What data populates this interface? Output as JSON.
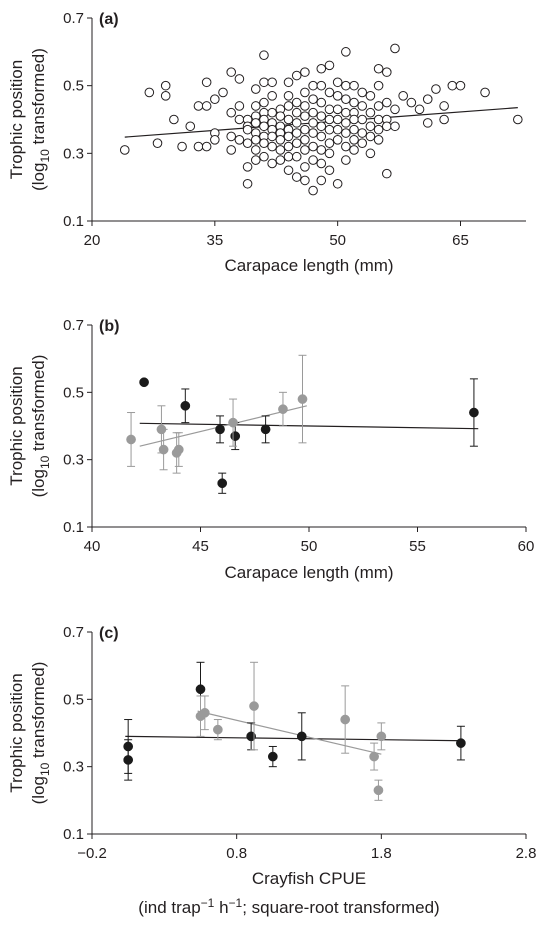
{
  "chart_data": [
    {
      "type": "scatter",
      "panel_label": "(a)",
      "xlabel": "Carapace length (mm)",
      "ylabel_line1": "Trophic position",
      "ylabel_line2_pre": "(log",
      "ylabel_line2_sub": "10",
      "ylabel_line2_post": " transformed)",
      "xlim": [
        20,
        73
      ],
      "ylim": [
        0.1,
        0.7
      ],
      "xticks": [
        20,
        35,
        50,
        65
      ],
      "yticks": [
        0.1,
        0.3,
        0.5,
        0.7
      ],
      "grid": false,
      "series": [
        {
          "marker": "open-circle",
          "color": "#231f20",
          "points": [
            [
              24,
              0.31
            ],
            [
              27,
              0.48
            ],
            [
              28,
              0.33
            ],
            [
              29,
              0.47
            ],
            [
              29,
              0.5
            ],
            [
              30,
              0.4
            ],
            [
              31,
              0.32
            ],
            [
              32,
              0.38
            ],
            [
              33,
              0.44
            ],
            [
              33,
              0.32
            ],
            [
              34,
              0.51
            ],
            [
              34,
              0.44
            ],
            [
              34,
              0.32
            ],
            [
              35,
              0.46
            ],
            [
              35,
              0.36
            ],
            [
              35,
              0.34
            ],
            [
              36,
              0.48
            ],
            [
              37,
              0.54
            ],
            [
              37,
              0.42
            ],
            [
              37,
              0.35
            ],
            [
              37,
              0.31
            ],
            [
              38,
              0.52
            ],
            [
              38,
              0.44
            ],
            [
              38,
              0.4
            ],
            [
              38,
              0.34
            ],
            [
              39,
              0.4
            ],
            [
              39,
              0.38
            ],
            [
              39,
              0.37
            ],
            [
              39,
              0.33
            ],
            [
              39,
              0.26
            ],
            [
              39,
              0.21
            ],
            [
              40,
              0.49
            ],
            [
              40,
              0.44
            ],
            [
              40,
              0.41
            ],
            [
              40,
              0.39
            ],
            [
              40,
              0.36
            ],
            [
              40,
              0.34
            ],
            [
              40,
              0.31
            ],
            [
              40,
              0.28
            ],
            [
              41,
              0.59
            ],
            [
              41,
              0.51
            ],
            [
              41,
              0.45
            ],
            [
              41,
              0.42
            ],
            [
              41,
              0.4
            ],
            [
              41,
              0.38
            ],
            [
              41,
              0.35
            ],
            [
              41,
              0.33
            ],
            [
              41,
              0.29
            ],
            [
              42,
              0.51
            ],
            [
              42,
              0.47
            ],
            [
              42,
              0.42
            ],
            [
              42,
              0.39
            ],
            [
              42,
              0.37
            ],
            [
              42,
              0.35
            ],
            [
              42,
              0.32
            ],
            [
              42,
              0.27
            ],
            [
              43,
              0.43
            ],
            [
              43,
              0.41
            ],
            [
              43,
              0.38
            ],
            [
              43,
              0.36
            ],
            [
              43,
              0.34
            ],
            [
              43,
              0.31
            ],
            [
              43,
              0.28
            ],
            [
              44,
              0.51
            ],
            [
              44,
              0.47
            ],
            [
              44,
              0.44
            ],
            [
              44,
              0.4
            ],
            [
              44,
              0.37
            ],
            [
              44,
              0.35
            ],
            [
              44,
              0.32
            ],
            [
              44,
              0.29
            ],
            [
              44,
              0.25
            ],
            [
              45,
              0.53
            ],
            [
              45,
              0.45
            ],
            [
              45,
              0.42
            ],
            [
              45,
              0.39
            ],
            [
              45,
              0.36
            ],
            [
              45,
              0.33
            ],
            [
              45,
              0.29
            ],
            [
              45,
              0.23
            ],
            [
              46,
              0.54
            ],
            [
              46,
              0.48
            ],
            [
              46,
              0.44
            ],
            [
              46,
              0.41
            ],
            [
              46,
              0.37
            ],
            [
              46,
              0.34
            ],
            [
              46,
              0.31
            ],
            [
              46,
              0.26
            ],
            [
              46,
              0.22
            ],
            [
              47,
              0.5
            ],
            [
              47,
              0.46
            ],
            [
              47,
              0.42
            ],
            [
              47,
              0.39
            ],
            [
              47,
              0.36
            ],
            [
              47,
              0.32
            ],
            [
              47,
              0.28
            ],
            [
              47,
              0.19
            ],
            [
              48,
              0.55
            ],
            [
              48,
              0.5
            ],
            [
              48,
              0.45
            ],
            [
              48,
              0.41
            ],
            [
              48,
              0.38
            ],
            [
              48,
              0.35
            ],
            [
              48,
              0.31
            ],
            [
              48,
              0.27
            ],
            [
              48,
              0.22
            ],
            [
              49,
              0.56
            ],
            [
              49,
              0.48
            ],
            [
              49,
              0.43
            ],
            [
              49,
              0.4
            ],
            [
              49,
              0.37
            ],
            [
              49,
              0.33
            ],
            [
              49,
              0.3
            ],
            [
              49,
              0.25
            ],
            [
              50,
              0.51
            ],
            [
              50,
              0.47
            ],
            [
              50,
              0.43
            ],
            [
              50,
              0.4
            ],
            [
              50,
              0.37
            ],
            [
              50,
              0.34
            ],
            [
              50,
              0.21
            ],
            [
              51,
              0.6
            ],
            [
              51,
              0.5
            ],
            [
              51,
              0.46
            ],
            [
              51,
              0.42
            ],
            [
              51,
              0.39
            ],
            [
              51,
              0.36
            ],
            [
              51,
              0.32
            ],
            [
              51,
              0.28
            ],
            [
              52,
              0.5
            ],
            [
              52,
              0.45
            ],
            [
              52,
              0.42
            ],
            [
              52,
              0.4
            ],
            [
              52,
              0.37
            ],
            [
              52,
              0.34
            ],
            [
              52,
              0.31
            ],
            [
              53,
              0.48
            ],
            [
              53,
              0.44
            ],
            [
              53,
              0.4
            ],
            [
              53,
              0.36
            ],
            [
              53,
              0.33
            ],
            [
              54,
              0.47
            ],
            [
              54,
              0.42
            ],
            [
              54,
              0.38
            ],
            [
              54,
              0.35
            ],
            [
              54,
              0.3
            ],
            [
              55,
              0.55
            ],
            [
              55,
              0.5
            ],
            [
              55,
              0.44
            ],
            [
              55,
              0.4
            ],
            [
              55,
              0.37
            ],
            [
              55,
              0.34
            ],
            [
              56,
              0.54
            ],
            [
              56,
              0.45
            ],
            [
              56,
              0.4
            ],
            [
              56,
              0.38
            ],
            [
              56,
              0.24
            ],
            [
              57,
              0.61
            ],
            [
              57,
              0.43
            ],
            [
              57,
              0.38
            ],
            [
              58,
              0.47
            ],
            [
              59,
              0.45
            ],
            [
              60,
              0.43
            ],
            [
              61,
              0.46
            ],
            [
              61,
              0.39
            ],
            [
              62,
              0.49
            ],
            [
              63,
              0.44
            ],
            [
              63,
              0.4
            ],
            [
              64,
              0.5
            ],
            [
              65,
              0.5
            ],
            [
              68,
              0.48
            ],
            [
              72,
              0.4
            ]
          ]
        }
      ],
      "trendlines": [
        {
          "color": "#231f20",
          "x": [
            24,
            72
          ],
          "y": [
            0.348,
            0.435
          ]
        }
      ]
    },
    {
      "type": "scatter",
      "panel_label": "(b)",
      "xlabel": "Carapace length (mm)",
      "ylabel_line1": "Trophic position",
      "ylabel_line2_pre": "(log",
      "ylabel_line2_sub": "10",
      "ylabel_line2_post": " transformed)",
      "xlim": [
        40,
        60
      ],
      "ylim": [
        0.1,
        0.7
      ],
      "xticks": [
        40,
        45,
        50,
        55,
        60
      ],
      "yticks": [
        0.1,
        0.3,
        0.5,
        0.7
      ],
      "grid": false,
      "series": [
        {
          "marker": "filled-circle",
          "color": "#1a1a1a",
          "points": [
            [
              42.4,
              0.53,
              0.0
            ],
            [
              44.3,
              0.46,
              0.05
            ],
            [
              45.9,
              0.39,
              0.04
            ],
            [
              46.0,
              0.23,
              0.03
            ],
            [
              46.6,
              0.37,
              0.04
            ],
            [
              48.0,
              0.39,
              0.04
            ],
            [
              57.6,
              0.44,
              0.1
            ]
          ]
        },
        {
          "marker": "filled-circle",
          "color": "#9a9a9a",
          "points": [
            [
              41.8,
              0.36,
              0.08
            ],
            [
              43.2,
              0.39,
              0.07
            ],
            [
              43.3,
              0.33,
              0.06
            ],
            [
              43.9,
              0.32,
              0.06
            ],
            [
              44.0,
              0.33,
              0.05
            ],
            [
              46.5,
              0.41,
              0.07
            ],
            [
              48.8,
              0.45,
              0.05
            ],
            [
              49.7,
              0.48,
              0.13
            ]
          ]
        }
      ],
      "trendlines": [
        {
          "color": "#231f20",
          "x": [
            42.2,
            57.8
          ],
          "y": [
            0.408,
            0.392
          ]
        },
        {
          "color": "#9a9a9a",
          "x": [
            42.2,
            49.9
          ],
          "y": [
            0.34,
            0.46
          ]
        }
      ]
    },
    {
      "type": "scatter",
      "panel_label": "(c)",
      "xlabel": "Crayfish CPUE",
      "xlabel_line2_a": "(ind trap",
      "xlabel_line2_sup1": "−1",
      "xlabel_line2_b": " h",
      "xlabel_line2_sup2": "−1",
      "xlabel_line2_c": "; square-root transformed)",
      "ylabel_line1": "Trophic position",
      "ylabel_line2_pre": "(log",
      "ylabel_line2_sub": "10",
      "ylabel_line2_post": " transformed)",
      "xlim": [
        -0.2,
        2.8
      ],
      "ylim": [
        0.1,
        0.7
      ],
      "xticks": [
        -0.2,
        0.8,
        1.8,
        2.8
      ],
      "xtick_labels": [
        "−0.2",
        "0.8",
        "1.8",
        "2.8"
      ],
      "yticks": [
        0.1,
        0.3,
        0.5,
        0.7
      ],
      "grid": false,
      "series": [
        {
          "marker": "filled-circle",
          "color": "#1a1a1a",
          "points": [
            [
              0.05,
              0.36,
              0.08
            ],
            [
              0.05,
              0.32,
              0.06
            ],
            [
              0.55,
              0.53,
              0.08
            ],
            [
              0.9,
              0.39,
              0.04
            ],
            [
              1.05,
              0.33,
              0.03
            ],
            [
              1.25,
              0.39,
              0.07
            ],
            [
              2.35,
              0.37,
              0.05
            ]
          ]
        },
        {
          "marker": "filled-circle",
          "color": "#9a9a9a",
          "points": [
            [
              0.55,
              0.45,
              0.06
            ],
            [
              0.58,
              0.46,
              0.05
            ],
            [
              0.67,
              0.41,
              0.03
            ],
            [
              0.92,
              0.48,
              0.13
            ],
            [
              1.55,
              0.44,
              0.1
            ],
            [
              1.75,
              0.33,
              0.04
            ],
            [
              1.8,
              0.39,
              0.04
            ],
            [
              1.78,
              0.23,
              0.03
            ]
          ]
        }
      ],
      "trendlines": [
        {
          "color": "#231f20",
          "x": [
            0.03,
            2.37
          ],
          "y": [
            0.39,
            0.377
          ]
        },
        {
          "color": "#9a9a9a",
          "x": [
            0.53,
            1.8
          ],
          "y": [
            0.465,
            0.337
          ]
        }
      ]
    }
  ]
}
